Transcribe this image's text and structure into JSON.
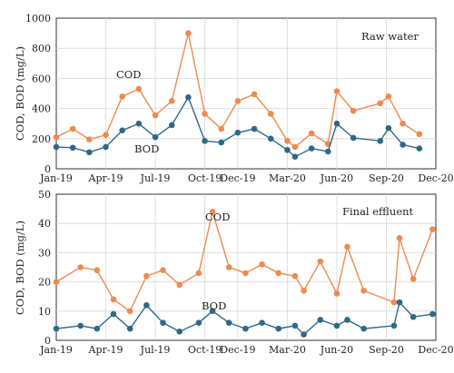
{
  "colors": {
    "cod": "#ee8a4e",
    "bod": "#2f6888"
  },
  "chart_data": [
    {
      "type": "line",
      "title": "Raw water",
      "xlabel": "",
      "ylabel": "COD, BOD (mg/L)",
      "xlim": [
        "Jan-19",
        "Dec-20"
      ],
      "ylim": [
        0,
        1000
      ],
      "x_ticks": [
        "Jan-19",
        "Apr-19",
        "Jul-19",
        "Oct-19",
        "Dec-19",
        "Mar-20",
        "Jun-20",
        "Sep-20",
        "Dec-20"
      ],
      "y_ticks": [
        0,
        200,
        400,
        600,
        800,
        1000
      ],
      "grid": true,
      "series": [
        {
          "name": "COD",
          "points": [
            [
              "2019-01-01",
              210
            ],
            [
              "2019-02-01",
              265
            ],
            [
              "2019-03-01",
              195
            ],
            [
              "2019-04-01",
              225
            ],
            [
              "2019-05-01",
              480
            ],
            [
              "2019-06-01",
              530
            ],
            [
              "2019-07-01",
              355
            ],
            [
              "2019-08-01",
              450
            ],
            [
              "2019-09-01",
              900
            ],
            [
              "2019-10-01",
              365
            ],
            [
              "2019-11-01",
              265
            ],
            [
              "2019-12-01",
              450
            ],
            [
              "2020-01-01",
              495
            ],
            [
              "2020-02-01",
              365
            ],
            [
              "2020-03-01",
              185
            ],
            [
              "2020-03-15",
              145
            ],
            [
              "2020-04-15",
              235
            ],
            [
              "2020-05-15",
              165
            ],
            [
              "2020-06-01",
              515
            ],
            [
              "2020-07-01",
              385
            ],
            [
              "2020-08-20",
              435
            ],
            [
              "2020-09-05",
              480
            ],
            [
              "2020-10-01",
              300
            ],
            [
              "2020-11-01",
              230
            ]
          ]
        },
        {
          "name": "BOD",
          "points": [
            [
              "2019-01-01",
              145
            ],
            [
              "2019-02-01",
              140
            ],
            [
              "2019-03-01",
              110
            ],
            [
              "2019-04-01",
              145
            ],
            [
              "2019-05-01",
              255
            ],
            [
              "2019-06-01",
              300
            ],
            [
              "2019-07-01",
              210
            ],
            [
              "2019-08-01",
              290
            ],
            [
              "2019-09-01",
              475
            ],
            [
              "2019-10-01",
              185
            ],
            [
              "2019-11-01",
              175
            ],
            [
              "2019-12-01",
              240
            ],
            [
              "2020-01-01",
              265
            ],
            [
              "2020-02-01",
              200
            ],
            [
              "2020-03-01",
              125
            ],
            [
              "2020-03-15",
              80
            ],
            [
              "2020-04-15",
              135
            ],
            [
              "2020-05-15",
              115
            ],
            [
              "2020-06-01",
              300
            ],
            [
              "2020-07-01",
              205
            ],
            [
              "2020-08-20",
              185
            ],
            [
              "2020-09-05",
              270
            ],
            [
              "2020-10-01",
              160
            ],
            [
              "2020-11-01",
              135
            ]
          ]
        }
      ]
    },
    {
      "type": "line",
      "title": "Final effluent",
      "xlabel": "",
      "ylabel": "COD, BOD (mg/L)",
      "xlim": [
        "Jan-19",
        "Dec-20"
      ],
      "ylim": [
        0,
        50
      ],
      "x_ticks": [
        "Jan-19",
        "Apr-19",
        "Jul-19",
        "Oct-19",
        "Dec-19",
        "Mar-20",
        "Jun-20",
        "Sep-20",
        "Dec-20"
      ],
      "y_ticks": [
        0,
        10,
        20,
        30,
        40,
        50
      ],
      "grid": true,
      "series": [
        {
          "name": "COD",
          "points": [
            [
              "2019-01-01",
              20
            ],
            [
              "2019-02-15",
              25
            ],
            [
              "2019-03-15",
              24
            ],
            [
              "2019-04-15",
              14
            ],
            [
              "2019-05-15",
              10
            ],
            [
              "2019-06-15",
              22
            ],
            [
              "2019-07-15",
              24
            ],
            [
              "2019-08-15",
              19
            ],
            [
              "2019-09-20",
              23
            ],
            [
              "2019-10-15",
              44
            ],
            [
              "2019-11-15",
              25
            ],
            [
              "2019-12-15",
              23
            ],
            [
              "2020-01-15",
              26
            ],
            [
              "2020-02-15",
              23
            ],
            [
              "2020-03-15",
              22
            ],
            [
              "2020-04-01",
              17
            ],
            [
              "2020-05-01",
              27
            ],
            [
              "2020-06-01",
              16
            ],
            [
              "2020-06-20",
              32
            ],
            [
              "2020-07-20",
              17
            ],
            [
              "2020-09-15",
              13
            ],
            [
              "2020-09-25",
              35
            ],
            [
              "2020-10-20",
              21
            ],
            [
              "2020-11-25",
              38
            ]
          ]
        },
        {
          "name": "BOD",
          "points": [
            [
              "2019-01-01",
              4
            ],
            [
              "2019-02-15",
              5
            ],
            [
              "2019-03-15",
              4
            ],
            [
              "2019-04-15",
              9
            ],
            [
              "2019-05-15",
              4
            ],
            [
              "2019-06-15",
              12
            ],
            [
              "2019-07-15",
              6
            ],
            [
              "2019-08-15",
              3
            ],
            [
              "2019-09-20",
              6
            ],
            [
              "2019-10-15",
              10
            ],
            [
              "2019-11-15",
              6
            ],
            [
              "2019-12-15",
              4
            ],
            [
              "2020-01-15",
              6
            ],
            [
              "2020-02-15",
              4
            ],
            [
              "2020-03-15",
              5
            ],
            [
              "2020-04-01",
              2
            ],
            [
              "2020-05-01",
              7
            ],
            [
              "2020-06-01",
              5
            ],
            [
              "2020-06-20",
              7
            ],
            [
              "2020-07-20",
              4
            ],
            [
              "2020-09-15",
              5
            ],
            [
              "2020-09-25",
              13
            ],
            [
              "2020-10-20",
              8
            ],
            [
              "2020-11-25",
              9
            ]
          ]
        }
      ]
    }
  ]
}
